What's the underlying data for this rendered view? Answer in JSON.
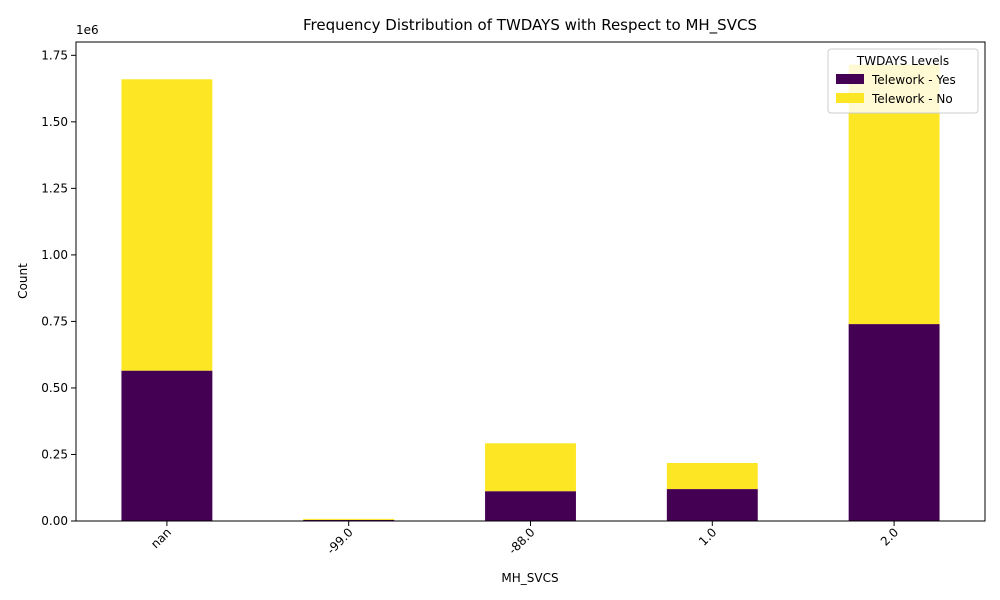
{
  "chart_data": {
    "type": "bar",
    "stacked": true,
    "title": "Frequency Distribution of TWDAYS with Respect to MH_SVCS",
    "xlabel": "MH_SVCS",
    "ylabel": "Count",
    "y_offset_label": "1e6",
    "categories": [
      "nan",
      "-99.0",
      "-88.0",
      "1.0",
      "2.0"
    ],
    "series": [
      {
        "name": "Telework - Yes",
        "color": "#440154",
        "values": [
          565000,
          4000,
          112000,
          120000,
          740000
        ]
      },
      {
        "name": "Telework - No",
        "color": "#fde725",
        "values": [
          1095000,
          4000,
          180000,
          98000,
          975000
        ]
      }
    ],
    "ylim": [
      0,
      1800000
    ],
    "yticks": [
      0,
      250000,
      500000,
      750000,
      1000000,
      1250000,
      1500000,
      1750000
    ],
    "ytick_labels": [
      "0.00",
      "0.25",
      "0.50",
      "0.75",
      "1.00",
      "1.25",
      "1.50",
      "1.75"
    ],
    "xtick_rotation_deg": 45,
    "grid": false,
    "legend": {
      "title": "TWDAYS Levels",
      "placement": "top-right"
    }
  }
}
